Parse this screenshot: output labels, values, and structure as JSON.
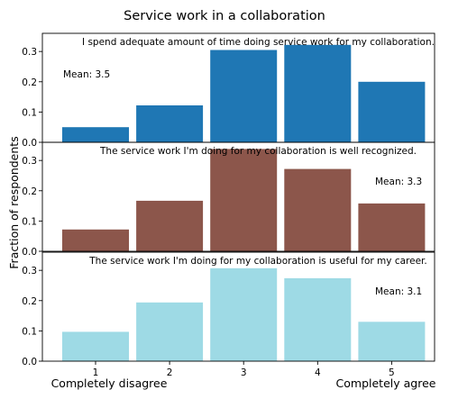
{
  "chart_data": {
    "type": "bar",
    "title": "Service work in a collaboration",
    "ylabel": "Fraction of respondents",
    "categories": [
      "1",
      "2",
      "3",
      "4",
      "5"
    ],
    "x_end_labels": {
      "left": "Completely disagree",
      "right": "Completely agree"
    },
    "ylim": [
      0,
      0.36
    ],
    "yticks": [
      "0.0",
      "0.1",
      "0.2",
      "0.3"
    ],
    "grid": false,
    "panels": [
      {
        "question": "I spend adequate amount of time doing service work for my collaboration.",
        "mean_label": "Mean: 3.5",
        "mean_position": "upper-left",
        "color": "#1f77b4",
        "values": [
          0.05,
          0.122,
          0.305,
          0.322,
          0.2
        ]
      },
      {
        "question": "The service work I'm doing for my collaboration is well recognized.",
        "mean_label": "Mean: 3.3",
        "mean_position": "upper-right",
        "color": "#8c564b",
        "values": [
          0.072,
          0.167,
          0.338,
          0.272,
          0.158
        ]
      },
      {
        "question": "The service work I'm doing for my collaboration is useful for my career.",
        "mean_label": "Mean: 3.1",
        "mean_position": "upper-right",
        "color": "#9edae5",
        "values": [
          0.097,
          0.194,
          0.307,
          0.274,
          0.13
        ]
      }
    ]
  }
}
